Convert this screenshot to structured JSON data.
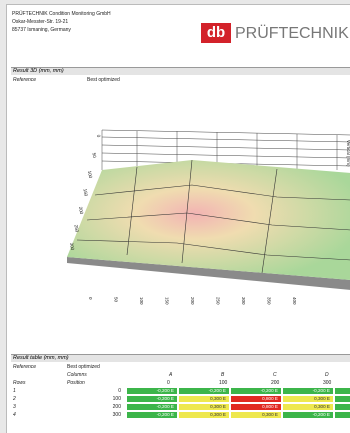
{
  "header": {
    "company": [
      "PRÜFTECHNIK Condition Monitoring GmbH",
      "Oskar-Messter-Str. 19-21",
      "85737 Ismaning, Germany"
    ],
    "logo_mark": "db",
    "logo_text": "PRÜFTECHNIK"
  },
  "section_3d": {
    "title": "Result 3D (mm, mm)",
    "reference_label": "Reference",
    "reference_value": "Best optimized",
    "plot": {
      "x_ticks": [
        "0",
        "50",
        "100",
        "150",
        "200",
        "250",
        "300",
        "350",
        "400"
      ],
      "y_ticks": [
        "0",
        "50",
        "100",
        "150",
        "200",
        "250",
        "300"
      ],
      "z_axis_label": "Vertical (mm)"
    }
  },
  "section_table": {
    "title": "Result table (mm, mm)",
    "reference_label": "Reference",
    "reference_value": "Best optimized",
    "columns_label": "Columns",
    "rows_label": "Rows",
    "position_label": "Position",
    "columns": [
      {
        "name": "A",
        "position": "0"
      },
      {
        "name": "B",
        "position": "100"
      },
      {
        "name": "C",
        "position": "200"
      },
      {
        "name": "D",
        "position": "300"
      },
      {
        "name": "E",
        "position": "400"
      }
    ],
    "rows": [
      {
        "name": "1",
        "position": "0",
        "cells": [
          "-0,200 E",
          "-0,200 E",
          "-0,200 E",
          "-0,200 E",
          "-0,200 E"
        ],
        "colors": [
          "#3cb54a",
          "#3cb54a",
          "#3cb54a",
          "#3cb54a",
          "#3cb54a"
        ]
      },
      {
        "name": "2",
        "position": "100",
        "cells": [
          "-0,200 E",
          "0,300 E",
          "0,800 E",
          "0,300 E",
          "-0,200 E"
        ],
        "colors": [
          "#3cb54a",
          "#eee84e",
          "#e12a22",
          "#eee84e",
          "#3cb54a"
        ]
      },
      {
        "name": "3",
        "position": "200",
        "cells": [
          "-0,200 E",
          "0,300 E",
          "0,800 E",
          "0,300 E",
          "-0,200 E"
        ],
        "colors": [
          "#3cb54a",
          "#eee84e",
          "#e12a22",
          "#eee84e",
          "#3cb54a"
        ]
      },
      {
        "name": "4",
        "position": "300",
        "cells": [
          "-0,200 E",
          "0,300 E",
          "0,300 E",
          "-0,200 E",
          "-0,200 E"
        ],
        "colors": [
          "#3cb54a",
          "#eee84e",
          "#eee84e",
          "#3cb54a",
          "#3cb54a"
        ]
      }
    ]
  }
}
